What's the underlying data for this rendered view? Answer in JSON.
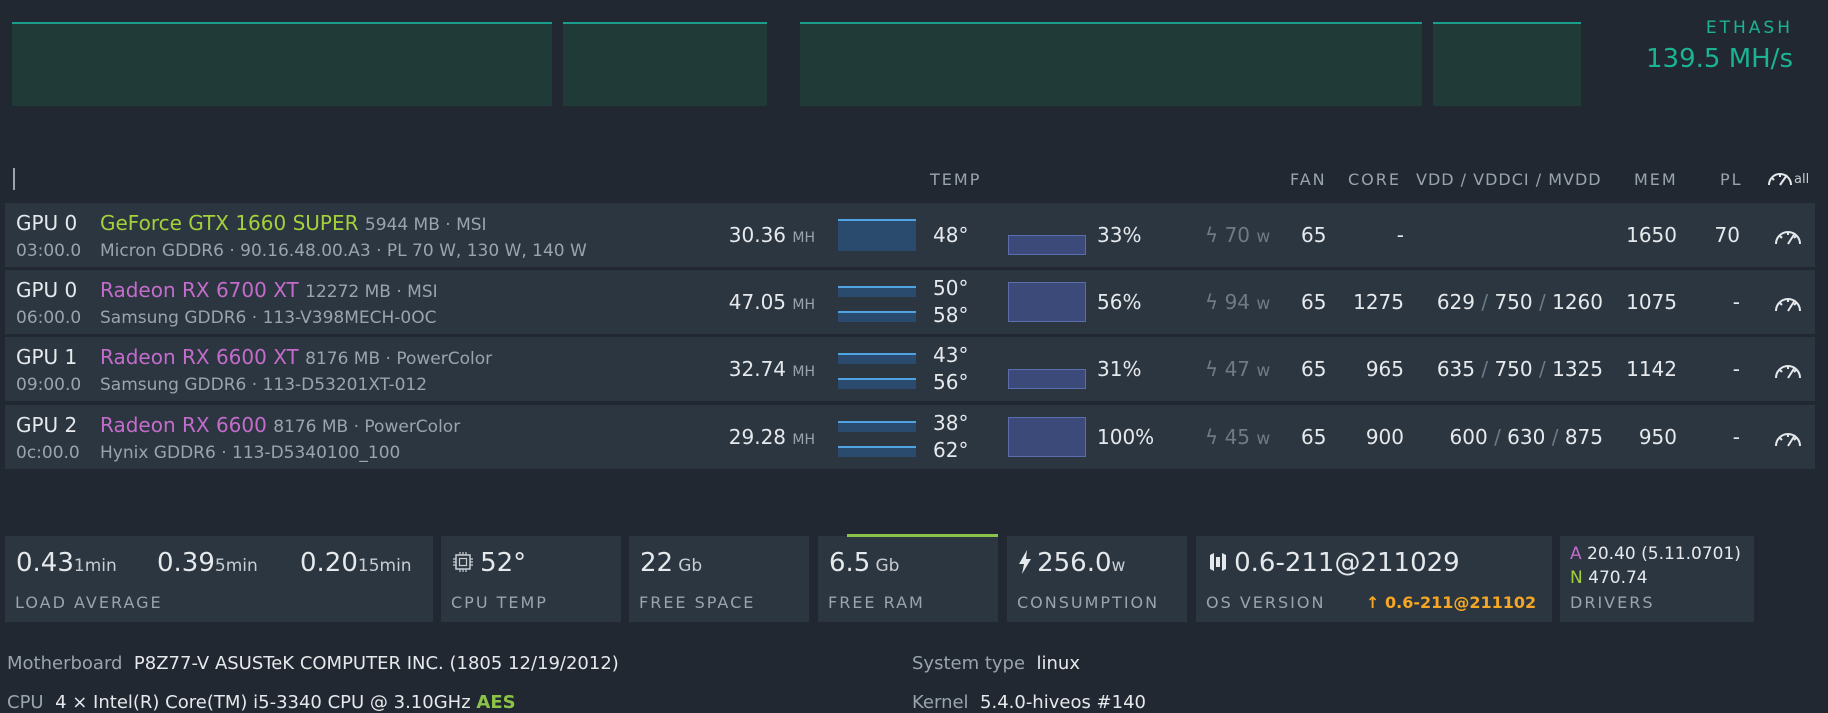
{
  "summary": {
    "algo": "ETHASH",
    "hashrate": "139.5 MH/s"
  },
  "columns": {
    "temp": "TEMP",
    "fan": "FAN",
    "core": "CORE",
    "vdd": "VDD / VDDCI / MVDD",
    "mem": "MEM",
    "pl": "PL",
    "gauge_all": "all"
  },
  "gpus": [
    {
      "id": "GPU 0",
      "bus": "03:00.0",
      "model": "GeForce GTX 1660 SUPER",
      "vendor_color": "#a3d13b",
      "mem_size": "5944 MB · MSI",
      "mem_info": "Micron GDDR6 · 90.16.48.00.A3 · PL 70 W, 130 W, 140 W",
      "hashrate": "30.36",
      "hash_unit": "MH",
      "temps": [
        "48°"
      ],
      "fan_pct": "33%",
      "fan_fraction": 0.33,
      "power": "70",
      "power_unit": "w",
      "fan": "65",
      "core": "-",
      "vdd": "",
      "vddci": "",
      "mvdd": "",
      "mem": "1650",
      "pl": "70"
    },
    {
      "id": "GPU 0",
      "bus": "06:00.0",
      "model": "Radeon RX 6700 XT",
      "vendor_color": "#c46ccb",
      "mem_size": "12272 MB · MSI",
      "mem_info": "Samsung GDDR6 · 113-V398MECH-0OC",
      "hashrate": "47.05",
      "hash_unit": "MH",
      "temps": [
        "50°",
        "58°"
      ],
      "fan_pct": "56%",
      "fan_fraction": 0.56,
      "power": "94",
      "power_unit": "w",
      "fan": "65",
      "core": "1275",
      "vdd": "629",
      "vddci": "750",
      "mvdd": "1260",
      "mem": "1075",
      "pl": "-"
    },
    {
      "id": "GPU 1",
      "bus": "09:00.0",
      "model": "Radeon RX 6600 XT",
      "vendor_color": "#c46ccb",
      "mem_size": "8176 MB · PowerColor",
      "mem_info": "Samsung GDDR6 · 113-D53201XT-012",
      "hashrate": "32.74",
      "hash_unit": "MH",
      "temps": [
        "43°",
        "56°"
      ],
      "fan_pct": "31%",
      "fan_fraction": 0.31,
      "power": "47",
      "power_unit": "w",
      "fan": "65",
      "core": "965",
      "vdd": "635",
      "vddci": "750",
      "mvdd": "1325",
      "mem": "1142",
      "pl": "-"
    },
    {
      "id": "GPU 2",
      "bus": "0c:00.0",
      "model": "Radeon RX 6600",
      "vendor_color": "#c46ccb",
      "mem_size": "8176 MB · PowerColor",
      "mem_info": "Hynix GDDR6 · 113-D5340100_100",
      "hashrate": "29.28",
      "hash_unit": "MH",
      "temps": [
        "38°",
        "62°"
      ],
      "fan_pct": "100%",
      "fan_fraction": 1.0,
      "power": "45",
      "power_unit": "w",
      "fan": "65",
      "core": "900",
      "vdd": "600",
      "vddci": "630",
      "mvdd": "875",
      "mem": "950",
      "pl": "-"
    }
  ],
  "stats": {
    "load": {
      "l1": "0.43",
      "l1u": "1min",
      "l5": "0.39",
      "l5u": "5min",
      "l15": "0.20",
      "l15u": "15min",
      "label": "LOAD AVERAGE"
    },
    "cpu_temp": {
      "value": "52°",
      "label": "CPU TEMP"
    },
    "free_space": {
      "value": "22",
      "unit": "Gb",
      "label": "FREE SPACE"
    },
    "free_ram": {
      "value": "6.5",
      "unit": "Gb",
      "label": "FREE RAM"
    },
    "consumption": {
      "value": "256.0",
      "unit": "w",
      "label": "CONSUMPTION"
    },
    "os": {
      "value": "0.6-211@211029",
      "update": "0.6-211@211102",
      "label": "OS VERSION"
    },
    "drivers": {
      "a_tag": "A",
      "a": "20.40 (5.11.0701)",
      "n_tag": "N",
      "n": "470.74",
      "label": "DRIVERS"
    }
  },
  "system": {
    "motherboard_label": "Motherboard",
    "motherboard": "P8Z77-V ASUSTeK COMPUTER INC. (1805 12/19/2012)",
    "cpu_label": "CPU",
    "cpu": "4 × Intel(R) Core(TM) i5-3340 CPU @ 3.10GHz",
    "cpu_flag": "AES",
    "systype_label": "System type",
    "systype": "linux",
    "kernel_label": "Kernel",
    "kernel": "5.4.0-hiveos #140"
  }
}
